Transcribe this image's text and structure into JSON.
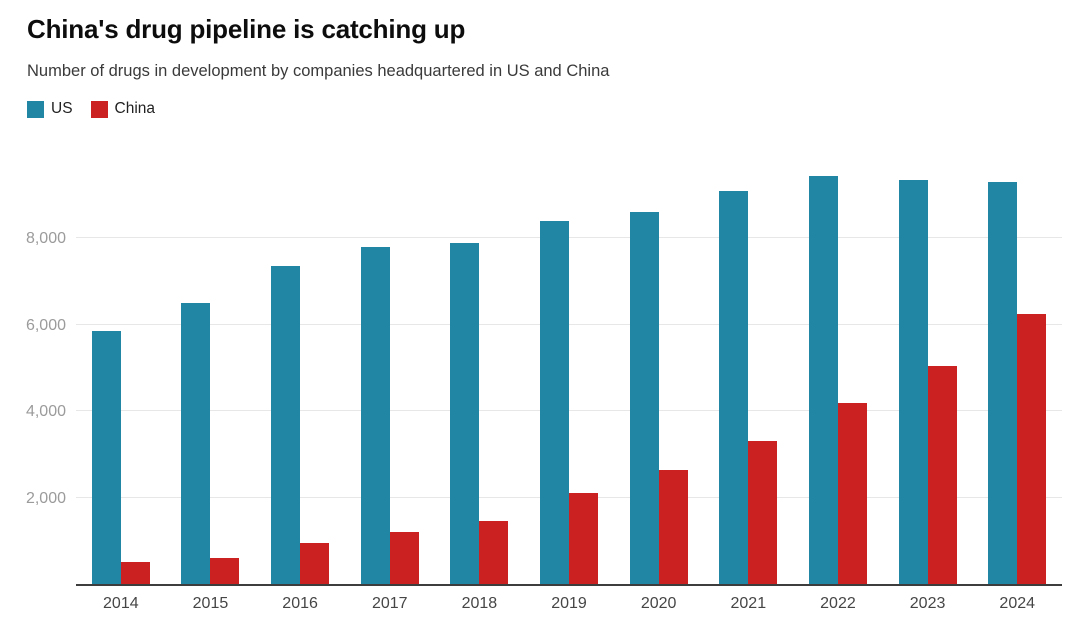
{
  "header": {
    "title": "China's drug pipeline is catching up",
    "subtitle": "Number of drugs in development by companies headquartered in US and China"
  },
  "legend": {
    "items": [
      {
        "label": "US",
        "color": "#2186a3"
      },
      {
        "label": "China",
        "color": "#cb2121"
      }
    ]
  },
  "chart_data": {
    "type": "bar",
    "title": "China's drug pipeline is catching up",
    "subtitle": "Number of drugs in development by companies headquartered in US and China",
    "categories": [
      "2014",
      "2015",
      "2016",
      "2017",
      "2018",
      "2019",
      "2020",
      "2021",
      "2022",
      "2023",
      "2024"
    ],
    "series": [
      {
        "name": "US",
        "color": "#2186a3",
        "values": [
          5850,
          6500,
          7350,
          7800,
          7900,
          8400,
          8600,
          9100,
          9450,
          9350,
          9300
        ]
      },
      {
        "name": "China",
        "color": "#cb2121",
        "values": [
          500,
          600,
          950,
          1200,
          1450,
          2100,
          2650,
          3300,
          4200,
          5050,
          6250
        ]
      }
    ],
    "xlabel": "",
    "ylabel": "",
    "ylim": [
      0,
      10000
    ],
    "yticks": [
      {
        "value": 2000,
        "label": "2,000"
      },
      {
        "value": 4000,
        "label": "4,000"
      },
      {
        "value": 6000,
        "label": "6,000"
      },
      {
        "value": 8000,
        "label": "8,000"
      }
    ],
    "grid": "horizontal-only",
    "legend_position": "top-left",
    "style_colors": {
      "axis_line": "#3d3d3d",
      "gridline": "#e7e7e7",
      "y_tick_label": "#9b9b9b",
      "x_tick_label": "#464646",
      "background": "#ffffff"
    }
  }
}
